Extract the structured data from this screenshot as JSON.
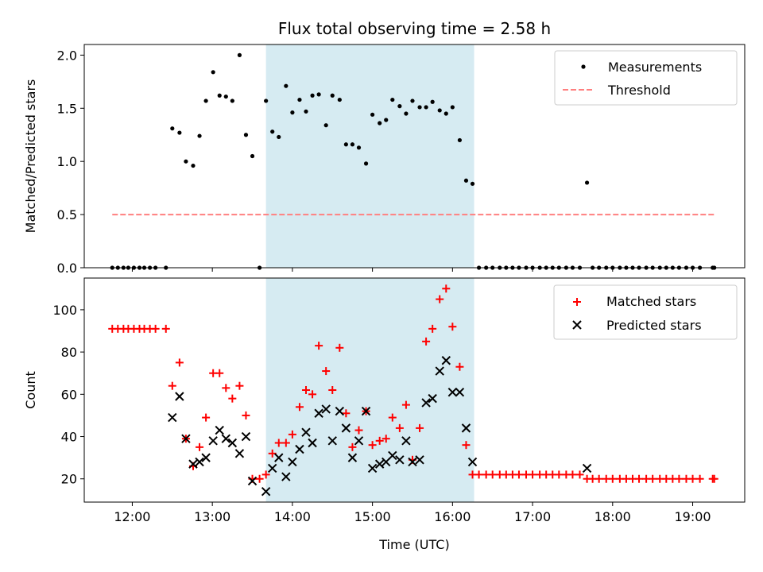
{
  "chart_data": [
    {
      "type": "scatter",
      "title": "Flux total observing time = 2.58 h",
      "ylabel": "Matched/Predicted stars",
      "xlabel": "",
      "ylim": [
        0,
        2.1
      ],
      "yticks": [
        "0.0",
        "0.5",
        "1.0",
        "1.5",
        "2.0"
      ],
      "ytick_values": [
        0,
        0.5,
        1.0,
        1.5,
        2.0
      ],
      "xlim": [
        11.4,
        19.65
      ],
      "xticks": [
        12,
        13,
        14,
        15,
        16,
        17,
        18,
        19
      ],
      "shaded_span": [
        13.67,
        16.27
      ],
      "shade_color": "#add8e6",
      "legend": {
        "placement": "top-right",
        "entries": [
          "Measurements",
          "Threshold"
        ]
      },
      "threshold": {
        "name": "Threshold",
        "value": 0.5,
        "x_range": [
          11.75,
          19.27
        ],
        "color": "#ff7f7f"
      },
      "series": [
        {
          "name": "Measurements",
          "marker": "dot",
          "color": "#000000",
          "x": [
            11.75,
            11.82,
            11.89,
            11.95,
            12.02,
            12.09,
            12.15,
            12.22,
            12.29,
            12.42,
            12.5,
            12.59,
            12.67,
            12.76,
            12.84,
            12.92,
            13.01,
            13.09,
            13.17,
            13.25,
            13.34,
            13.42,
            13.5,
            13.59,
            13.67,
            13.75,
            13.83,
            13.92,
            14.0,
            14.09,
            14.17,
            14.25,
            14.33,
            14.42,
            14.5,
            14.59,
            14.67,
            14.75,
            14.83,
            14.92,
            15.0,
            15.09,
            15.17,
            15.25,
            15.34,
            15.42,
            15.5,
            15.59,
            15.67,
            15.75,
            15.84,
            15.92,
            16.0,
            16.09,
            16.17,
            16.25,
            16.33,
            16.42,
            16.5,
            16.59,
            16.67,
            16.75,
            16.83,
            16.92,
            17.0,
            17.09,
            17.17,
            17.25,
            17.33,
            17.42,
            17.5,
            17.59,
            17.68,
            17.75,
            17.83,
            17.92,
            18.0,
            18.09,
            18.17,
            18.25,
            18.33,
            18.42,
            18.5,
            18.59,
            18.67,
            18.75,
            18.83,
            18.92,
            19.0,
            19.09,
            19.25,
            19.27
          ],
          "y": [
            0,
            0,
            0,
            0,
            0,
            0,
            0,
            0,
            0,
            0,
            1.31,
            1.27,
            1.0,
            0.96,
            1.24,
            1.57,
            1.84,
            1.62,
            1.61,
            1.57,
            2.0,
            1.25,
            1.05,
            0,
            1.57,
            1.28,
            1.23,
            1.71,
            1.46,
            1.58,
            1.47,
            1.62,
            1.63,
            1.34,
            1.62,
            1.58,
            1.16,
            1.16,
            1.13,
            0.98,
            1.44,
            1.36,
            1.39,
            1.58,
            1.52,
            1.45,
            1.57,
            1.51,
            1.51,
            1.56,
            1.48,
            1.45,
            1.51,
            1.2,
            0.82,
            0.79,
            0,
            0,
            0,
            0,
            0,
            0,
            0,
            0,
            0,
            0,
            0,
            0,
            0,
            0,
            0,
            0,
            0.8,
            0,
            0,
            0,
            0,
            0,
            0,
            0,
            0,
            0,
            0,
            0,
            0,
            0,
            0,
            0,
            0,
            0,
            0,
            0
          ]
        }
      ]
    },
    {
      "type": "scatter",
      "title": "",
      "ylabel": "Count",
      "xlabel": "Time (UTC)",
      "ylim": [
        9,
        115
      ],
      "yticks": [
        "20",
        "40",
        "60",
        "80",
        "100"
      ],
      "ytick_values": [
        20,
        40,
        60,
        80,
        100
      ],
      "xlim": [
        11.4,
        19.65
      ],
      "xticks": [
        12,
        13,
        14,
        15,
        16,
        17,
        18,
        19
      ],
      "xtick_labels": [
        "12:00",
        "13:00",
        "14:00",
        "15:00",
        "16:00",
        "17:00",
        "18:00",
        "19:00"
      ],
      "shaded_span": [
        13.67,
        16.27
      ],
      "shade_color": "#add8e6",
      "legend": {
        "placement": "top-right",
        "entries": [
          "Matched stars",
          "Predicted stars"
        ]
      },
      "series": [
        {
          "name": "Matched stars",
          "marker": "plus",
          "color": "#ff0000",
          "x": [
            11.75,
            11.82,
            11.89,
            11.95,
            12.02,
            12.09,
            12.15,
            12.22,
            12.29,
            12.42,
            12.5,
            12.59,
            12.67,
            12.76,
            12.84,
            12.92,
            13.01,
            13.09,
            13.17,
            13.25,
            13.34,
            13.42,
            13.5,
            13.59,
            13.67,
            13.75,
            13.83,
            13.92,
            14.0,
            14.09,
            14.17,
            14.25,
            14.33,
            14.42,
            14.5,
            14.59,
            14.67,
            14.75,
            14.83,
            14.92,
            15.0,
            15.09,
            15.17,
            15.25,
            15.34,
            15.42,
            15.5,
            15.59,
            15.67,
            15.75,
            15.84,
            15.92,
            16.0,
            16.09,
            16.17,
            16.25,
            16.33,
            16.42,
            16.5,
            16.59,
            16.67,
            16.75,
            16.83,
            16.92,
            17.0,
            17.09,
            17.17,
            17.25,
            17.33,
            17.42,
            17.5,
            17.59,
            17.68,
            17.75,
            17.83,
            17.92,
            18.0,
            18.09,
            18.17,
            18.25,
            18.33,
            18.42,
            18.5,
            18.59,
            18.67,
            18.75,
            18.83,
            18.92,
            19.0,
            19.09,
            19.25,
            19.27
          ],
          "y": [
            91,
            91,
            91,
            91,
            91,
            91,
            91,
            91,
            91,
            91,
            64,
            75,
            39,
            26,
            35,
            49,
            70,
            70,
            63,
            58,
            64,
            50,
            20,
            20,
            22,
            32,
            37,
            37,
            41,
            54,
            62,
            60,
            83,
            71,
            62,
            82,
            51,
            35,
            43,
            52,
            36,
            38,
            39,
            49,
            44,
            55,
            29,
            44,
            85,
            91,
            105,
            110,
            92,
            73,
            36,
            22,
            22,
            22,
            22,
            22,
            22,
            22,
            22,
            22,
            22,
            22,
            22,
            22,
            22,
            22,
            22,
            22,
            20,
            20,
            20,
            20,
            20,
            20,
            20,
            20,
            20,
            20,
            20,
            20,
            20,
            20,
            20,
            20,
            20,
            20,
            20,
            20
          ]
        },
        {
          "name": "Predicted stars",
          "marker": "x",
          "color": "#000000",
          "x": [
            12.5,
            12.59,
            12.67,
            12.76,
            12.84,
            12.92,
            13.01,
            13.09,
            13.17,
            13.25,
            13.34,
            13.42,
            13.5,
            13.67,
            13.75,
            13.83,
            13.92,
            14.0,
            14.09,
            14.17,
            14.25,
            14.33,
            14.42,
            14.5,
            14.59,
            14.67,
            14.75,
            14.83,
            14.92,
            15.0,
            15.09,
            15.17,
            15.25,
            15.34,
            15.42,
            15.5,
            15.59,
            15.67,
            15.75,
            15.84,
            15.92,
            16.0,
            16.09,
            16.17,
            16.25,
            17.68
          ],
          "y": [
            49,
            59,
            39,
            27,
            28,
            30,
            38,
            43,
            39,
            37,
            32,
            40,
            19,
            14,
            25,
            30,
            21,
            28,
            34,
            42,
            37,
            51,
            53,
            38,
            52,
            44,
            30,
            38,
            52,
            25,
            27,
            28,
            31,
            29,
            38,
            28,
            29,
            56,
            58,
            71,
            76,
            61,
            61,
            44,
            28,
            25
          ]
        }
      ]
    }
  ]
}
